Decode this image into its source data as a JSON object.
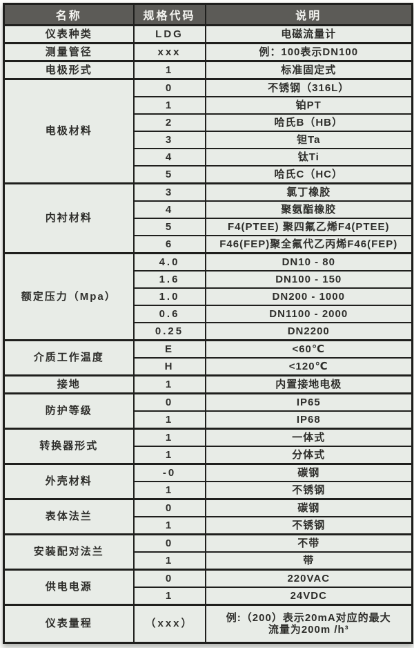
{
  "colors": {
    "header_bg": "#5c5b57",
    "header_text": "#f4f4f0",
    "cell_bg": "#e8ece7",
    "border": "#1f1f1d",
    "text": "#2e2e2b"
  },
  "table": {
    "headers": [
      "名称",
      "规格代码",
      "说明"
    ],
    "groups": [
      {
        "name": "仪表种类",
        "rows": [
          {
            "code": "LDG",
            "desc": "电磁流量计"
          }
        ]
      },
      {
        "name": "测量管径",
        "rows": [
          {
            "code": "xxx",
            "desc": "例：100表示DN100"
          }
        ]
      },
      {
        "name": "电极形式",
        "rows": [
          {
            "code": "1",
            "desc": "标准固定式"
          }
        ]
      },
      {
        "name": "电极材料",
        "rows": [
          {
            "code": "0",
            "desc": "不锈钢（316L）"
          },
          {
            "code": "1",
            "desc": "铂PT"
          },
          {
            "code": "2",
            "desc": "哈氏B（HB）"
          },
          {
            "code": "3",
            "desc": "钽Ta"
          },
          {
            "code": "4",
            "desc": "钛Ti"
          },
          {
            "code": "5",
            "desc": "哈氏C（HC）"
          }
        ]
      },
      {
        "name": "内衬材料",
        "rows": [
          {
            "code": "3",
            "desc": "氯丁橡胶"
          },
          {
            "code": "4",
            "desc": "聚氨酯橡胶"
          },
          {
            "code": "5",
            "desc": "F4(PTEE) 聚四氟乙烯F4(PTEE)"
          },
          {
            "code": "6",
            "desc": "F46(FEP)聚全氟代乙丙烯F46(FEP)"
          }
        ]
      },
      {
        "name": "额定压力（Mpa）",
        "rows": [
          {
            "code": "4.0",
            "desc": "DN10 - 80"
          },
          {
            "code": "1.6",
            "desc": "DN100 - 150"
          },
          {
            "code": "1.0",
            "desc": "DN200 - 1000"
          },
          {
            "code": "0.6",
            "desc": "DN1100 - 2000"
          },
          {
            "code": "0.25",
            "desc": "DN2200"
          }
        ]
      },
      {
        "name": "介质工作温度",
        "rows": [
          {
            "code": "E",
            "desc": "<60℃"
          },
          {
            "code": "H",
            "desc": "<120℃"
          }
        ]
      },
      {
        "name": "接地",
        "rows": [
          {
            "code": "1",
            "desc": "内置接地电极"
          }
        ]
      },
      {
        "name": "防护等级",
        "rows": [
          {
            "code": "0",
            "desc": "IP65"
          },
          {
            "code": "1",
            "desc": "IP68"
          }
        ]
      },
      {
        "name": "转换器形式",
        "rows": [
          {
            "code": "1",
            "desc": "一体式"
          },
          {
            "code": "1",
            "desc": "分体式"
          }
        ]
      },
      {
        "name": "外壳材料",
        "rows": [
          {
            "code": "-0",
            "desc": "碳钢"
          },
          {
            "code": "1",
            "desc": "不锈钢"
          }
        ]
      },
      {
        "name": "表体法兰",
        "rows": [
          {
            "code": "0",
            "desc": "碳钢"
          },
          {
            "code": "1",
            "desc": "不锈钢"
          }
        ]
      },
      {
        "name": "安装配对法兰",
        "rows": [
          {
            "code": "0",
            "desc": "不带"
          },
          {
            "code": "1",
            "desc": "带"
          }
        ]
      },
      {
        "name": "供电电源",
        "rows": [
          {
            "code": "0",
            "desc": "220VAC"
          },
          {
            "code": "1",
            "desc": "24VDC"
          }
        ]
      },
      {
        "name": "仪表量程",
        "tall": true,
        "rows": [
          {
            "code": "（xxx）",
            "desc": "例:（200）表示20mA对应的最大\n流量为200m /h³"
          }
        ]
      }
    ]
  }
}
